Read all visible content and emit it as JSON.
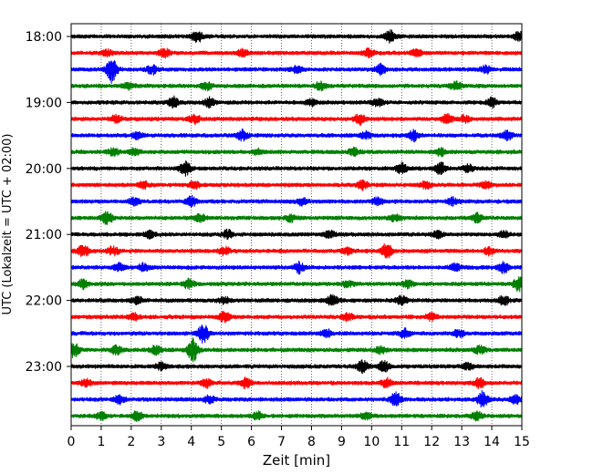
{
  "chart_data": {
    "type": "line",
    "title": "",
    "xlabel": "Zeit  [min]",
    "ylabel": "UTC (Lokalzeit = UTC + 02:00)",
    "xlim": [
      0,
      15
    ],
    "x_ticks": [
      0,
      1,
      2,
      3,
      4,
      5,
      6,
      7,
      8,
      9,
      10,
      11,
      12,
      13,
      14,
      15
    ],
    "x_tick_labels": [
      "0",
      "1",
      "2",
      "3",
      "4",
      "5",
      "6",
      "7",
      "8",
      "9",
      "10",
      "11",
      "12",
      "13",
      "14",
      "15"
    ],
    "y_tick_labels": [
      "18:00",
      "19:00",
      "20:00",
      "21:00",
      "22:00",
      "23:00"
    ],
    "y_tick_rows": [
      0,
      4,
      8,
      12,
      16,
      20
    ],
    "vertical_grid": true,
    "row_minutes": 15,
    "row_colors": [
      "#000000",
      "#ff0000",
      "#0000ff",
      "#008000"
    ],
    "series": [
      {
        "start": "18:00",
        "color": "#000000",
        "events": [
          [
            4.2,
            0.6
          ],
          [
            10.6,
            0.7
          ],
          [
            14.9,
            0.5
          ]
        ]
      },
      {
        "start": "18:15",
        "color": "#ff0000",
        "events": [
          [
            1.2,
            0.4
          ],
          [
            3.1,
            0.5
          ],
          [
            5.7,
            0.4
          ],
          [
            9.9,
            0.5
          ],
          [
            11.5,
            0.4
          ]
        ]
      },
      {
        "start": "18:30",
        "color": "#0000ff",
        "events": [
          [
            1.35,
            1.5
          ],
          [
            2.7,
            0.5
          ],
          [
            7.5,
            0.4
          ],
          [
            10.3,
            0.6
          ],
          [
            13.8,
            0.4
          ]
        ]
      },
      {
        "start": "18:45",
        "color": "#008000",
        "events": [
          [
            1.9,
            0.4
          ],
          [
            4.5,
            0.5
          ],
          [
            8.3,
            0.5
          ],
          [
            12.8,
            0.5
          ]
        ]
      },
      {
        "start": "19:00",
        "color": "#000000",
        "events": [
          [
            3.4,
            0.6
          ],
          [
            4.6,
            0.5
          ],
          [
            8.0,
            0.4
          ],
          [
            10.2,
            0.4
          ],
          [
            14.0,
            0.6
          ]
        ]
      },
      {
        "start": "19:15",
        "color": "#ff0000",
        "events": [
          [
            1.5,
            0.4
          ],
          [
            4.1,
            0.5
          ],
          [
            9.6,
            0.6
          ],
          [
            12.5,
            0.6
          ],
          [
            13.1,
            0.4
          ]
        ]
      },
      {
        "start": "19:30",
        "color": "#0000ff",
        "events": [
          [
            2.2,
            0.4
          ],
          [
            5.7,
            0.6
          ],
          [
            9.8,
            0.4
          ],
          [
            11.4,
            0.6
          ],
          [
            14.5,
            0.5
          ]
        ]
      },
      {
        "start": "19:45",
        "color": "#008000",
        "events": [
          [
            1.4,
            0.4
          ],
          [
            2.1,
            0.4
          ],
          [
            6.2,
            0.3
          ],
          [
            9.4,
            0.4
          ],
          [
            12.3,
            0.4
          ]
        ]
      },
      {
        "start": "20:00",
        "color": "#000000",
        "events": [
          [
            3.8,
            0.8
          ],
          [
            11.0,
            0.6
          ],
          [
            12.3,
            0.7
          ],
          [
            13.2,
            0.4
          ]
        ]
      },
      {
        "start": "20:15",
        "color": "#ff0000",
        "events": [
          [
            2.4,
            0.4
          ],
          [
            4.1,
            0.4
          ],
          [
            9.7,
            0.5
          ],
          [
            11.8,
            0.4
          ],
          [
            13.8,
            0.4
          ]
        ]
      },
      {
        "start": "20:30",
        "color": "#0000ff",
        "events": [
          [
            2.1,
            0.4
          ],
          [
            4.0,
            0.6
          ],
          [
            7.7,
            0.4
          ],
          [
            10.2,
            0.4
          ],
          [
            12.7,
            0.4
          ]
        ]
      },
      {
        "start": "20:45",
        "color": "#008000",
        "events": [
          [
            1.2,
            0.8
          ],
          [
            4.3,
            0.4
          ],
          [
            7.3,
            0.4
          ],
          [
            10.8,
            0.4
          ],
          [
            13.5,
            0.5
          ]
        ]
      },
      {
        "start": "21:00",
        "color": "#000000",
        "events": [
          [
            2.6,
            0.4
          ],
          [
            5.2,
            0.5
          ],
          [
            8.6,
            0.4
          ],
          [
            12.2,
            0.4
          ],
          [
            14.4,
            0.4
          ]
        ]
      },
      {
        "start": "21:15",
        "color": "#ff0000",
        "events": [
          [
            0.4,
            0.7
          ],
          [
            1.4,
            0.5
          ],
          [
            5.1,
            0.4
          ],
          [
            9.2,
            0.4
          ],
          [
            10.5,
            0.9
          ],
          [
            13.9,
            0.4
          ]
        ]
      },
      {
        "start": "21:30",
        "color": "#0000ff",
        "events": [
          [
            1.6,
            0.5
          ],
          [
            2.4,
            0.4
          ],
          [
            7.6,
            0.6
          ],
          [
            12.8,
            0.4
          ],
          [
            14.4,
            0.6
          ]
        ]
      },
      {
        "start": "21:45",
        "color": "#008000",
        "events": [
          [
            0.4,
            0.5
          ],
          [
            3.9,
            0.5
          ],
          [
            9.2,
            0.4
          ],
          [
            11.2,
            0.4
          ],
          [
            14.9,
            0.8
          ]
        ]
      },
      {
        "start": "22:00",
        "color": "#000000",
        "events": [
          [
            2.2,
            0.4
          ],
          [
            5.1,
            0.4
          ],
          [
            8.7,
            0.6
          ],
          [
            11.0,
            0.5
          ],
          [
            14.4,
            0.5
          ]
        ]
      },
      {
        "start": "22:15",
        "color": "#ff0000",
        "events": [
          [
            2.1,
            0.4
          ],
          [
            5.1,
            0.6
          ],
          [
            9.2,
            0.4
          ],
          [
            12.0,
            0.4
          ]
        ]
      },
      {
        "start": "22:30",
        "color": "#0000ff",
        "events": [
          [
            4.4,
            1.1
          ],
          [
            8.5,
            0.4
          ],
          [
            11.1,
            0.5
          ],
          [
            12.9,
            0.4
          ]
        ]
      },
      {
        "start": "22:45",
        "color": "#008000",
        "events": [
          [
            0.1,
            0.8
          ],
          [
            1.5,
            0.5
          ],
          [
            2.8,
            0.5
          ],
          [
            4.05,
            1.3
          ],
          [
            10.3,
            0.4
          ],
          [
            13.6,
            0.5
          ]
        ]
      },
      {
        "start": "23:00",
        "color": "#000000",
        "events": [
          [
            3.0,
            0.4
          ],
          [
            9.7,
            0.7
          ],
          [
            10.4,
            0.6
          ],
          [
            13.2,
            0.4
          ]
        ]
      },
      {
        "start": "23:15",
        "color": "#ff0000",
        "events": [
          [
            0.5,
            0.4
          ],
          [
            4.5,
            0.5
          ],
          [
            5.8,
            0.6
          ],
          [
            10.5,
            0.5
          ],
          [
            13.6,
            0.6
          ]
        ]
      },
      {
        "start": "23:30",
        "color": "#0000ff",
        "events": [
          [
            1.6,
            0.5
          ],
          [
            4.6,
            0.4
          ],
          [
            10.8,
            0.8
          ],
          [
            13.7,
            0.9
          ],
          [
            14.8,
            0.5
          ]
        ]
      },
      {
        "start": "23:45",
        "color": "#008000",
        "events": [
          [
            1.0,
            0.4
          ],
          [
            2.2,
            0.5
          ],
          [
            6.2,
            0.4
          ],
          [
            9.8,
            0.4
          ],
          [
            13.5,
            0.5
          ]
        ]
      }
    ]
  }
}
